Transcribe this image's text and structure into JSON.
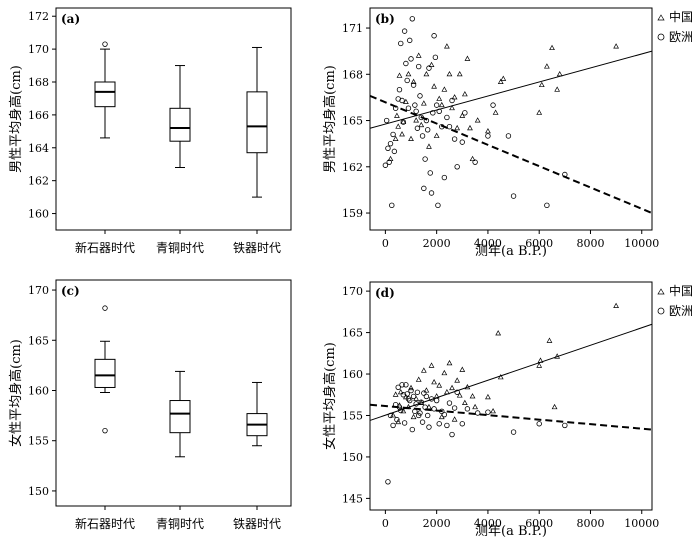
{
  "chart_data": [
    {
      "panel": "(a)",
      "type": "box",
      "ylabel": "男性平均身高(cm)",
      "xlabel": "",
      "categories": [
        "新石器时代",
        "青铜时代",
        "铁器时代"
      ],
      "ylim": [
        159,
        172.5
      ],
      "yticks": [
        160,
        162,
        164,
        166,
        168,
        170,
        172
      ],
      "boxes": [
        {
          "min": 164.6,
          "q1": 166.5,
          "median": 167.4,
          "q3": 168.0,
          "max": 170.0,
          "outliers": [
            170.3
          ]
        },
        {
          "min": 162.8,
          "q1": 164.4,
          "median": 165.2,
          "q3": 166.4,
          "max": 169.0,
          "outliers": []
        },
        {
          "min": 161.0,
          "q1": 163.7,
          "median": 165.3,
          "q3": 167.4,
          "max": 170.1,
          "outliers": []
        }
      ]
    },
    {
      "panel": "(b)",
      "type": "scatter",
      "ylabel": "男性平均身高(cm)",
      "xlabel": "测年(a B.P.)",
      "xlim": [
        -600,
        10400
      ],
      "ylim": [
        157.9,
        172.3
      ],
      "xticks": [
        0,
        2000,
        4000,
        6000,
        8000,
        10000
      ],
      "yticks": [
        159,
        162,
        165,
        168,
        171
      ],
      "legend": [
        "中国",
        "欧洲"
      ],
      "legend_position": "top-right, outside plot",
      "series": [
        {
          "name": "中国",
          "marker": "triangle",
          "fit": "solid",
          "fit_line": [
            [
              -600,
              164.5
            ],
            [
              10400,
              169.5
            ]
          ],
          "points": [
            [
              200,
              162.5
            ],
            [
              400,
              163.8
            ],
            [
              450,
              165.3
            ],
            [
              500,
              164.6
            ],
            [
              550,
              167.9
            ],
            [
              650,
              164.1
            ],
            [
              700,
              164.9
            ],
            [
              800,
              166.2
            ],
            [
              900,
              168.0
            ],
            [
              1000,
              163.8
            ],
            [
              1100,
              167.5
            ],
            [
              1200,
              165.0
            ],
            [
              1300,
              169.2
            ],
            [
              1400,
              164.7
            ],
            [
              1500,
              166.1
            ],
            [
              1600,
              168.0
            ],
            [
              1700,
              163.3
            ],
            [
              1800,
              168.6
            ],
            [
              1900,
              167.2
            ],
            [
              2000,
              164.0
            ],
            [
              2100,
              166.4
            ],
            [
              2200,
              166.0
            ],
            [
              2300,
              167.0
            ],
            [
              2400,
              169.8
            ],
            [
              2500,
              168.0
            ],
            [
              2600,
              165.8
            ],
            [
              2700,
              166.5
            ],
            [
              2800,
              164.5
            ],
            [
              2900,
              168.0
            ],
            [
              3000,
              165.3
            ],
            [
              3100,
              166.7
            ],
            [
              3200,
              169.0
            ],
            [
              3300,
              164.5
            ],
            [
              3400,
              162.5
            ],
            [
              3600,
              165.0
            ],
            [
              4000,
              164.3
            ],
            [
              4300,
              165.5
            ],
            [
              4500,
              167.5
            ],
            [
              4600,
              167.7
            ],
            [
              6000,
              165.5
            ],
            [
              6100,
              167.3
            ],
            [
              6300,
              168.5
            ],
            [
              6500,
              169.7
            ],
            [
              6700,
              167.0
            ],
            [
              6800,
              168.0
            ],
            [
              9000,
              169.8
            ]
          ]
        },
        {
          "name": "欧洲",
          "marker": "circle",
          "fit": "dashed",
          "fit_line": [
            [
              -600,
              166.6
            ],
            [
              10400,
              159.0
            ]
          ],
          "points": [
            [
              0,
              162.1
            ],
            [
              50,
              165.0
            ],
            [
              100,
              163.2
            ],
            [
              150,
              162.3
            ],
            [
              200,
              163.5
            ],
            [
              250,
              159.5
            ],
            [
              300,
              164.1
            ],
            [
              350,
              163.0
            ],
            [
              400,
              165.8
            ],
            [
              500,
              166.4
            ],
            [
              550,
              167.0
            ],
            [
              600,
              170.0
            ],
            [
              650,
              166.3
            ],
            [
              700,
              164.9
            ],
            [
              750,
              170.8
            ],
            [
              800,
              168.7
            ],
            [
              850,
              167.6
            ],
            [
              900,
              165.8
            ],
            [
              950,
              170.2
            ],
            [
              1000,
              169.0
            ],
            [
              1050,
              171.6
            ],
            [
              1100,
              167.3
            ],
            [
              1150,
              166.0
            ],
            [
              1200,
              165.6
            ],
            [
              1250,
              164.5
            ],
            [
              1300,
              168.5
            ],
            [
              1350,
              166.6
            ],
            [
              1400,
              165.2
            ],
            [
              1450,
              164.0
            ],
            [
              1500,
              160.6
            ],
            [
              1550,
              162.5
            ],
            [
              1600,
              165.0
            ],
            [
              1650,
              164.4
            ],
            [
              1700,
              168.4
            ],
            [
              1750,
              161.6
            ],
            [
              1800,
              160.3
            ],
            [
              1850,
              165.5
            ],
            [
              1900,
              170.5
            ],
            [
              1950,
              169.1
            ],
            [
              2000,
              166.0
            ],
            [
              2050,
              159.5
            ],
            [
              2100,
              165.6
            ],
            [
              2200,
              164.6
            ],
            [
              2300,
              161.3
            ],
            [
              2400,
              165.2
            ],
            [
              2500,
              164.6
            ],
            [
              2600,
              166.3
            ],
            [
              2700,
              163.8
            ],
            [
              2800,
              162.0
            ],
            [
              3000,
              163.6
            ],
            [
              3100,
              165.5
            ],
            [
              3500,
              162.3
            ],
            [
              4000,
              164.0
            ],
            [
              4200,
              166.0
            ],
            [
              4800,
              164.0
            ],
            [
              5000,
              160.1
            ],
            [
              6300,
              159.5
            ],
            [
              7000,
              161.5
            ]
          ]
        }
      ]
    },
    {
      "panel": "(c)",
      "type": "box",
      "ylabel": "女性平均身高(cm)",
      "xlabel": "",
      "categories": [
        "新石器时代",
        "青铜时代",
        "铁器时代"
      ],
      "ylim": [
        148.5,
        171
      ],
      "yticks": [
        150,
        155,
        160,
        165,
        170
      ],
      "boxes": [
        {
          "min": 159.8,
          "q1": 160.3,
          "median": 161.5,
          "q3": 163.1,
          "max": 164.9,
          "outliers": [
            168.2,
            156.0
          ]
        },
        {
          "min": 153.4,
          "q1": 155.8,
          "median": 157.7,
          "q3": 159.0,
          "max": 161.9,
          "outliers": []
        },
        {
          "min": 154.5,
          "q1": 155.5,
          "median": 156.6,
          "q3": 157.7,
          "max": 160.8,
          "outliers": []
        }
      ]
    },
    {
      "panel": "(d)",
      "type": "scatter",
      "ylabel": "女性平均身高(cm)",
      "xlabel": "测年(a B.P.)",
      "xlim": [
        -600,
        10400
      ],
      "ylim": [
        143.6,
        171.1
      ],
      "xticks": [
        0,
        2000,
        4000,
        6000,
        8000,
        10000
      ],
      "yticks": [
        145,
        150,
        155,
        160,
        165,
        170
      ],
      "legend": [
        "中国",
        "欧洲"
      ],
      "legend_position": "top-right, outside plot",
      "series": [
        {
          "name": "中国",
          "marker": "triangle",
          "fit": "solid",
          "fit_line": [
            [
              -600,
              154.4
            ],
            [
              10400,
              166.0
            ]
          ],
          "points": [
            [
              300,
              155.0
            ],
            [
              400,
              157.5
            ],
            [
              500,
              154.2
            ],
            [
              550,
              156.2
            ],
            [
              600,
              157.8
            ],
            [
              700,
              155.5
            ],
            [
              800,
              157.2
            ],
            [
              900,
              156.0
            ],
            [
              1000,
              158.3
            ],
            [
              1100,
              154.8
            ],
            [
              1200,
              157.0
            ],
            [
              1300,
              159.3
            ],
            [
              1400,
              156.5
            ],
            [
              1500,
              160.4
            ],
            [
              1600,
              158.0
            ],
            [
              1700,
              156.0
            ],
            [
              1800,
              161.0
            ],
            [
              1900,
              159.0
            ],
            [
              2000,
              157.3
            ],
            [
              2100,
              158.6
            ],
            [
              2200,
              154.8
            ],
            [
              2300,
              160.1
            ],
            [
              2400,
              157.8
            ],
            [
              2500,
              161.3
            ],
            [
              2600,
              158.3
            ],
            [
              2700,
              154.5
            ],
            [
              2800,
              159.2
            ],
            [
              2900,
              157.4
            ],
            [
              3000,
              160.5
            ],
            [
              3100,
              156.5
            ],
            [
              3200,
              158.4
            ],
            [
              3400,
              157.3
            ],
            [
              3500,
              156.0
            ],
            [
              4000,
              157.2
            ],
            [
              4200,
              155.5
            ],
            [
              4400,
              164.9
            ],
            [
              4500,
              159.6
            ],
            [
              6000,
              161.0
            ],
            [
              6050,
              161.6
            ],
            [
              6400,
              164.0
            ],
            [
              6600,
              156.0
            ],
            [
              6700,
              162.1
            ],
            [
              9000,
              168.2
            ]
          ]
        },
        {
          "name": "欧洲",
          "marker": "circle",
          "fit": "dashed",
          "fit_line": [
            [
              -600,
              156.3
            ],
            [
              10400,
              153.3
            ]
          ],
          "points": [
            [
              100,
              147.0
            ],
            [
              200,
              155.0
            ],
            [
              300,
              153.8
            ],
            [
              400,
              156.3
            ],
            [
              450,
              154.5
            ],
            [
              500,
              158.4
            ],
            [
              550,
              156.0
            ],
            [
              600,
              155.6
            ],
            [
              650,
              158.7
            ],
            [
              700,
              157.5
            ],
            [
              750,
              154.1
            ],
            [
              800,
              158.7
            ],
            [
              850,
              157.6
            ],
            [
              900,
              157.0
            ],
            [
              950,
              156.8
            ],
            [
              1000,
              158.0
            ],
            [
              1050,
              153.3
            ],
            [
              1100,
              157.3
            ],
            [
              1150,
              155.5
            ],
            [
              1200,
              156.4
            ],
            [
              1250,
              157.8
            ],
            [
              1300,
              155.0
            ],
            [
              1350,
              155.3
            ],
            [
              1400,
              156.6
            ],
            [
              1450,
              154.2
            ],
            [
              1500,
              157.7
            ],
            [
              1550,
              156.0
            ],
            [
              1600,
              157.3
            ],
            [
              1650,
              155.0
            ],
            [
              1700,
              153.6
            ],
            [
              1800,
              157.0
            ],
            [
              1900,
              155.8
            ],
            [
              2000,
              156.8
            ],
            [
              2100,
              154.0
            ],
            [
              2200,
              155.5
            ],
            [
              2300,
              155.1
            ],
            [
              2400,
              153.8
            ],
            [
              2500,
              156.5
            ],
            [
              2600,
              152.7
            ],
            [
              2700,
              155.9
            ],
            [
              2800,
              157.8
            ],
            [
              3000,
              154.0
            ],
            [
              3200,
              155.8
            ],
            [
              3600,
              155.3
            ],
            [
              4000,
              155.4
            ],
            [
              5000,
              153.0
            ],
            [
              6000,
              154.0
            ],
            [
              7000,
              153.8
            ]
          ]
        }
      ]
    }
  ]
}
